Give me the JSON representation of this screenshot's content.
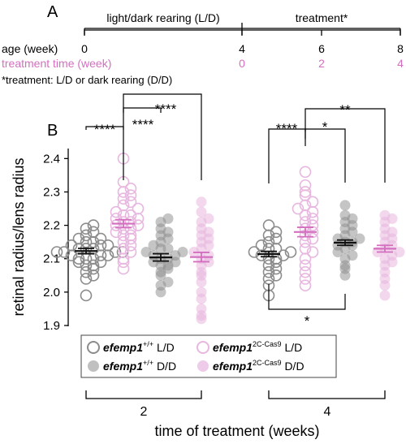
{
  "panel_a": {
    "label": "A",
    "rearing_label": "light/dark rearing (L/D)",
    "treatment_label": "treatment*",
    "age_label": "age (week)",
    "age_ticks": [
      "0",
      "4",
      "6",
      "8"
    ],
    "treatment_time_label": "treatment time (week)",
    "treatment_time_ticks": [
      "0",
      "2",
      "4"
    ],
    "footnote": "*treatment: L/D or dark rearing (D/D)",
    "accent_color": "#d46fc0"
  },
  "panel_b": {
    "label": "B",
    "significance": [
      {
        "text": "****"
      },
      {
        "text": "****"
      },
      {
        "text": "****"
      },
      {
        "text": "****"
      },
      {
        "text": "*"
      },
      {
        "text": "**"
      },
      {
        "text": "*"
      }
    ],
    "legend": [
      {
        "gene": "efemp1",
        "sup": "+/+",
        "condition": "L/D"
      },
      {
        "gene": "efemp1",
        "sup": "+/+",
        "condition": "D/D"
      },
      {
        "gene": "efemp1",
        "sup": "2C-Cas9",
        "condition": "L/D"
      },
      {
        "gene": "efemp1",
        "sup": "2C-Cas9",
        "condition": "D/D"
      }
    ]
  },
  "chart_data": {
    "type": "scatter",
    "title": "",
    "ylabel": "retinal radius/lens radius",
    "xlabel": "time of treatment (weeks)",
    "ylim": [
      1.9,
      2.43
    ],
    "yticks": [
      "1.9",
      "2.0",
      "2.1",
      "2.2",
      "2.3",
      "2.4"
    ],
    "categories": [
      "2",
      "4"
    ],
    "colors": {
      "wt": "#8c8c8c",
      "mut": "#e7b7df",
      "mean_wt": "#111111",
      "mean_mut": "#d46fc0"
    },
    "series": [
      {
        "name": "efemp1+/+ L/D",
        "group": "2",
        "mean": 2.123,
        "sem": 0.008,
        "values": [
          1.99,
          2.04,
          2.05,
          2.06,
          2.07,
          2.08,
          2.08,
          2.09,
          2.09,
          2.1,
          2.1,
          2.1,
          2.11,
          2.11,
          2.11,
          2.12,
          2.12,
          2.12,
          2.12,
          2.13,
          2.13,
          2.13,
          2.14,
          2.14,
          2.14,
          2.15,
          2.15,
          2.16,
          2.16,
          2.17,
          2.18,
          2.19,
          2.2
        ]
      },
      {
        "name": "efemp1 2C-Cas9 L/D",
        "group": "2",
        "mean": 2.205,
        "sem": 0.012,
        "values": [
          2.07,
          2.09,
          2.1,
          2.12,
          2.13,
          2.14,
          2.15,
          2.16,
          2.17,
          2.17,
          2.18,
          2.19,
          2.19,
          2.2,
          2.2,
          2.21,
          2.21,
          2.22,
          2.22,
          2.23,
          2.23,
          2.24,
          2.25,
          2.26,
          2.27,
          2.28,
          2.29,
          2.3,
          2.31,
          2.33,
          2.4
        ]
      },
      {
        "name": "efemp1+/+ D/D",
        "group": "2",
        "mean": 2.104,
        "sem": 0.011,
        "values": [
          2.0,
          2.02,
          2.03,
          2.05,
          2.06,
          2.07,
          2.08,
          2.08,
          2.09,
          2.09,
          2.1,
          2.1,
          2.11,
          2.11,
          2.12,
          2.12,
          2.13,
          2.13,
          2.14,
          2.15,
          2.16,
          2.17,
          2.18,
          2.19,
          2.21,
          2.22
        ]
      },
      {
        "name": "efemp1 2C-Cas9 D/D",
        "group": "2",
        "mean": 2.105,
        "sem": 0.014,
        "values": [
          1.92,
          1.93,
          1.95,
          1.98,
          2.0,
          2.03,
          2.05,
          2.06,
          2.08,
          2.09,
          2.1,
          2.11,
          2.12,
          2.13,
          2.14,
          2.15,
          2.16,
          2.17,
          2.18,
          2.19,
          2.21,
          2.22,
          2.24,
          2.27
        ]
      },
      {
        "name": "efemp1+/+ L/D",
        "group": "4",
        "mean": 2.114,
        "sem": 0.008,
        "values": [
          1.99,
          2.02,
          2.04,
          2.05,
          2.06,
          2.07,
          2.08,
          2.09,
          2.1,
          2.1,
          2.11,
          2.11,
          2.12,
          2.12,
          2.13,
          2.13,
          2.14,
          2.15,
          2.16,
          2.17,
          2.18,
          2.2
        ]
      },
      {
        "name": "efemp1 2C-Cas9 L/D",
        "group": "4",
        "mean": 2.18,
        "sem": 0.014,
        "values": [
          2.02,
          2.04,
          2.06,
          2.08,
          2.1,
          2.12,
          2.13,
          2.15,
          2.16,
          2.17,
          2.18,
          2.19,
          2.2,
          2.21,
          2.22,
          2.23,
          2.24,
          2.25,
          2.26,
          2.27,
          2.29,
          2.3,
          2.32,
          2.36
        ]
      },
      {
        "name": "efemp1+/+ D/D",
        "group": "4",
        "mean": 2.148,
        "sem": 0.008,
        "values": [
          2.05,
          2.07,
          2.08,
          2.1,
          2.11,
          2.12,
          2.13,
          2.14,
          2.14,
          2.15,
          2.15,
          2.16,
          2.16,
          2.17,
          2.18,
          2.19,
          2.2,
          2.21,
          2.22,
          2.23,
          2.26
        ]
      },
      {
        "name": "efemp1 2C-Cas9 D/D",
        "group": "4",
        "mean": 2.13,
        "sem": 0.01,
        "values": [
          1.99,
          2.02,
          2.04,
          2.06,
          2.08,
          2.09,
          2.1,
          2.11,
          2.12,
          2.12,
          2.13,
          2.14,
          2.15,
          2.16,
          2.17,
          2.18,
          2.19,
          2.21,
          2.22,
          2.23
        ]
      }
    ]
  }
}
